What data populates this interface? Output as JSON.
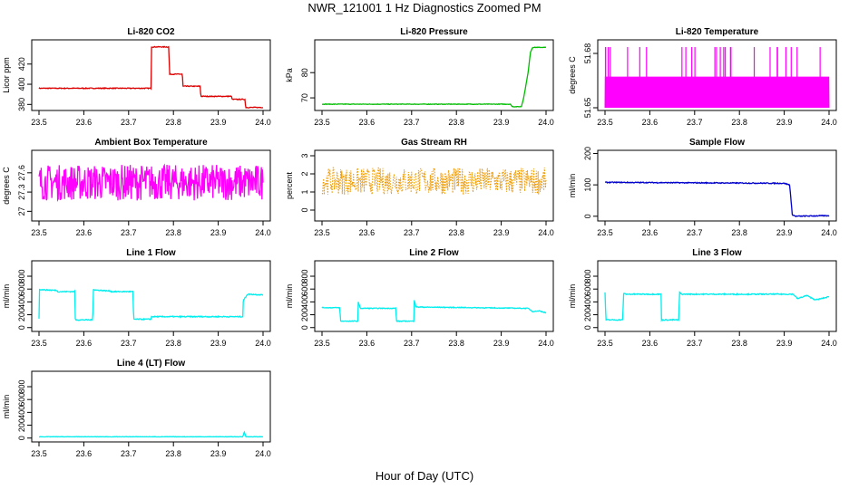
{
  "title": "NWR_121001  1 Hz Diagnostics Zoomed PM",
  "x_axis_label": "Hour of Day (UTC)",
  "chart_data": [
    {
      "type": "line",
      "title": "Li-820 CO2",
      "ylabel": "Licor ppm",
      "color": "#dd0000",
      "xlim": [
        23.5,
        24.0
      ],
      "ylim": [
        374,
        444
      ],
      "yticks": [
        380,
        400,
        420
      ],
      "xticks": [
        "23.5",
        "23.6",
        "23.7",
        "23.8",
        "23.9",
        "24.0"
      ],
      "noise": 0.4,
      "series": [
        {
          "x": [
            23.5,
            23.75,
            23.751,
            23.79,
            23.791,
            23.82,
            23.821,
            23.86,
            23.861,
            23.93,
            23.931,
            23.96,
            23.961,
            24.0
          ],
          "y": [
            396,
            396,
            437,
            437,
            410,
            410,
            398,
            398,
            388,
            388,
            385,
            385,
            377,
            377
          ]
        }
      ]
    },
    {
      "type": "line",
      "title": "Li-820 Pressure",
      "ylabel": "kPa",
      "color": "#00bb00",
      "xlim": [
        23.5,
        24.0
      ],
      "ylim": [
        65,
        93
      ],
      "yticks": [
        70,
        80
      ],
      "xticks": [
        "23.5",
        "23.6",
        "23.7",
        "23.8",
        "23.9",
        "24.0"
      ],
      "noise": 0.1,
      "series": [
        {
          "x": [
            23.5,
            23.92,
            23.925,
            23.945,
            23.95,
            23.96,
            23.965,
            23.97,
            24.0
          ],
          "y": [
            67.5,
            67.5,
            66.5,
            66.5,
            70,
            80,
            88,
            90,
            90
          ]
        }
      ]
    },
    {
      "type": "line",
      "title": "Li-820 Temperature",
      "ylabel": "degrees C",
      "color": "#ff00ff",
      "xlim": [
        23.5,
        24.0
      ],
      "ylim": [
        51.6485,
        51.6875
      ],
      "yticks": [
        51.65,
        51.68
      ],
      "xticks": [
        "23.5",
        "23.6",
        "23.7",
        "23.8",
        "23.9",
        "24.0"
      ],
      "noise": 0,
      "style": "quantized",
      "levels": [
        51.65,
        51.6672
      ],
      "spike_level": 51.6835,
      "series": [
        {
          "x": [
            23.5,
            24.0
          ],
          "y": [
            51.65,
            51.6672
          ]
        }
      ]
    },
    {
      "type": "line",
      "title": "Ambient Box Temperature",
      "ylabel": "degrees C",
      "color": "#ff00ff",
      "xlim": [
        23.5,
        24.0
      ],
      "ylim": [
        26.85,
        27.95
      ],
      "yticks": [
        27.0,
        27.3,
        27.6
      ],
      "xticks": [
        "23.5",
        "23.6",
        "23.7",
        "23.8",
        "23.9",
        "24.0"
      ],
      "noise": 0.28,
      "series": [
        {
          "x": [
            23.5,
            24.0
          ],
          "y": [
            27.45,
            27.45
          ]
        }
      ]
    },
    {
      "type": "line",
      "title": "Gas Stream RH",
      "ylabel": "percent",
      "color": "#ee9900",
      "xlim": [
        23.5,
        24.0
      ],
      "ylim": [
        -0.6,
        3.3
      ],
      "yticks": [
        0,
        1,
        2,
        3
      ],
      "xticks": [
        "23.5",
        "23.6",
        "23.7",
        "23.8",
        "23.9",
        "24.0"
      ],
      "noise": 0.75,
      "style": "points",
      "series": [
        {
          "x": [
            23.5,
            24.0
          ],
          "y": [
            1.6,
            1.6
          ]
        }
      ]
    },
    {
      "type": "line",
      "title": "Sample Flow",
      "ylabel": "ml/min",
      "color": "#0000cc",
      "xlim": [
        23.5,
        24.0
      ],
      "ylim": [
        -15,
        210
      ],
      "yticks": [
        0,
        100,
        200
      ],
      "xticks": [
        "23.5",
        "23.6",
        "23.7",
        "23.8",
        "23.9",
        "24.0"
      ],
      "noise": 1.5,
      "series": [
        {
          "x": [
            23.5,
            23.9,
            23.912,
            23.918,
            23.925,
            24.0
          ],
          "y": [
            108,
            105,
            100,
            5,
            0,
            2
          ]
        }
      ]
    },
    {
      "type": "line",
      "title": "Line 1 Flow",
      "ylabel": "ml/min",
      "color": "#00eeee",
      "xlim": [
        23.5,
        24.0
      ],
      "ylim": [
        -60,
        1040
      ],
      "yticks": [
        0,
        200,
        400,
        600,
        800
      ],
      "xticks": [
        "23.5",
        "23.6",
        "23.7",
        "23.8",
        "23.9",
        "24.0"
      ],
      "noise": 8,
      "series": [
        {
          "x": [
            23.5,
            23.501,
            23.505,
            23.54,
            23.541,
            23.58,
            23.581,
            23.62,
            23.621,
            23.625,
            23.66,
            23.661,
            23.71,
            23.711,
            23.75,
            23.751,
            23.955,
            23.956,
            23.965,
            24.0
          ],
          "y": [
            140,
            600,
            590,
            580,
            560,
            560,
            120,
            120,
            600,
            585,
            570,
            560,
            560,
            130,
            130,
            170,
            170,
            420,
            520,
            510
          ]
        }
      ]
    },
    {
      "type": "line",
      "title": "Line 2 Flow",
      "ylabel": "ml/min",
      "color": "#00eeee",
      "xlim": [
        23.5,
        24.0
      ],
      "ylim": [
        -60,
        1040
      ],
      "yticks": [
        0,
        200,
        400,
        600,
        800
      ],
      "xticks": [
        "23.5",
        "23.6",
        "23.7",
        "23.8",
        "23.9",
        "24.0"
      ],
      "noise": 6,
      "series": [
        {
          "x": [
            23.5,
            23.501,
            23.54,
            23.541,
            23.58,
            23.581,
            23.585,
            23.665,
            23.666,
            23.705,
            23.706,
            23.71,
            23.96,
            23.97,
            23.985,
            24.0
          ],
          "y": [
            310,
            310,
            310,
            100,
            100,
            410,
            300,
            300,
            100,
            100,
            430,
            320,
            300,
            250,
            260,
            230
          ]
        }
      ]
    },
    {
      "type": "line",
      "title": "Line 3 Flow",
      "ylabel": "ml/min",
      "color": "#00eeee",
      "xlim": [
        23.5,
        24.0
      ],
      "ylim": [
        -60,
        1040
      ],
      "yticks": [
        0,
        200,
        400,
        600,
        800
      ],
      "xticks": [
        "23.5",
        "23.6",
        "23.7",
        "23.8",
        "23.9",
        "24.0"
      ],
      "noise": 8,
      "series": [
        {
          "x": [
            23.5,
            23.502,
            23.503,
            23.54,
            23.541,
            23.545,
            23.625,
            23.626,
            23.665,
            23.666,
            23.67,
            23.92,
            23.93,
            23.95,
            23.97,
            24.0
          ],
          "y": [
            550,
            120,
            120,
            120,
            540,
            520,
            520,
            120,
            120,
            560,
            520,
            520,
            450,
            500,
            430,
            480
          ]
        }
      ]
    },
    {
      "type": "line",
      "title": "Line 4 (LT) Flow",
      "ylabel": "ml/min",
      "color": "#00eeee",
      "xlim": [
        23.5,
        24.0
      ],
      "ylim": [
        -60,
        1040
      ],
      "yticks": [
        0,
        200,
        400,
        600,
        800
      ],
      "xticks": [
        "23.5",
        "23.6",
        "23.7",
        "23.8",
        "23.9",
        "24.0"
      ],
      "noise": 3,
      "series": [
        {
          "x": [
            23.5,
            23.954,
            23.956,
            23.958,
            23.962,
            24.0
          ],
          "y": [
            20,
            20,
            40,
            100,
            20,
            20
          ]
        }
      ]
    }
  ]
}
